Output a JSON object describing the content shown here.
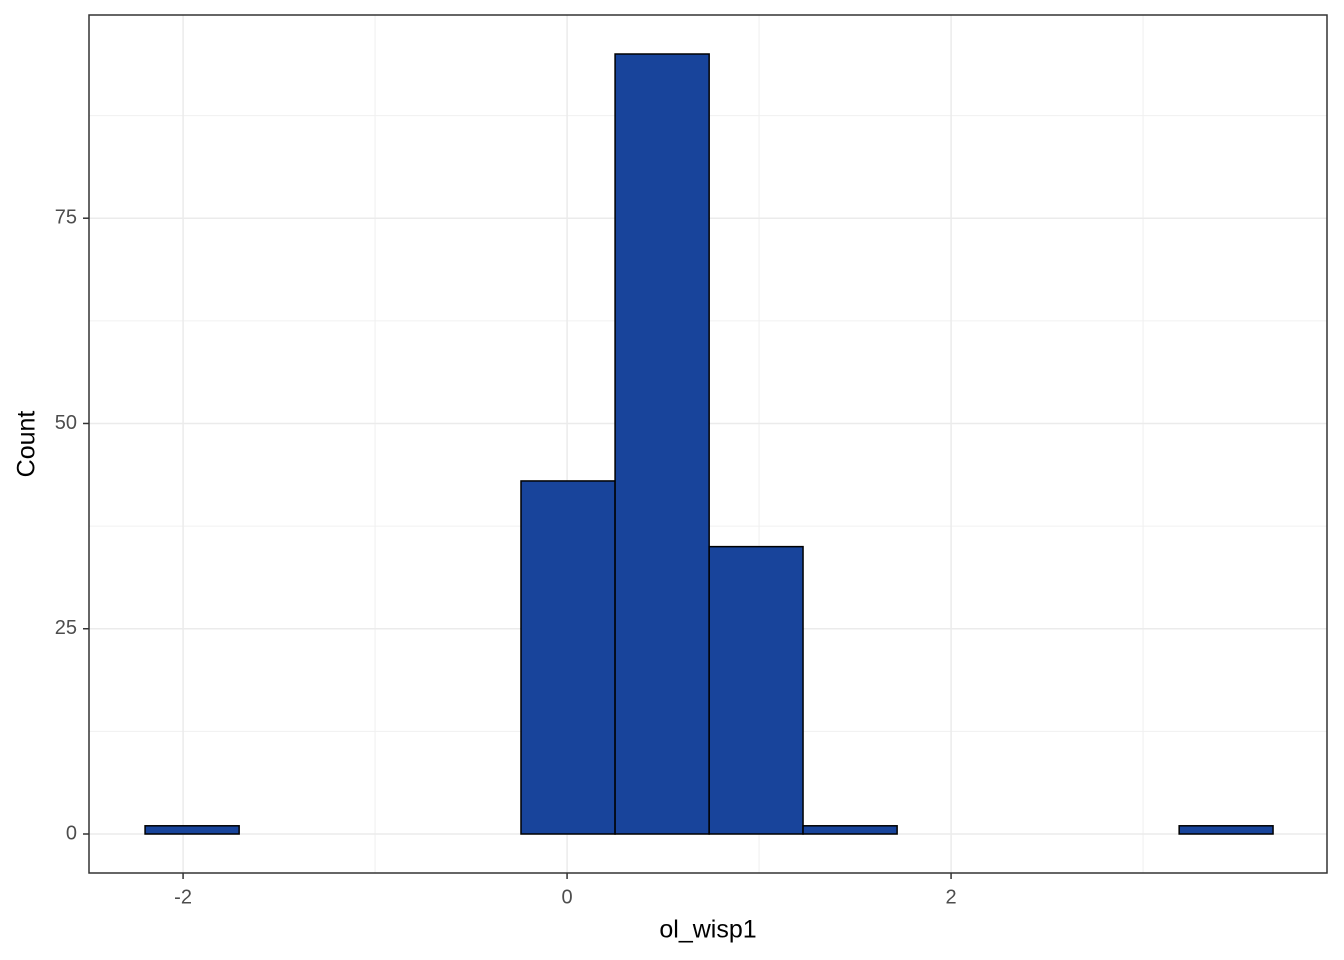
{
  "chart_data": {
    "type": "histogram",
    "x_label": "ol_wisp1",
    "y_label": "Count",
    "bins": [
      -2.198,
      -1.708,
      -1.219,
      -0.729,
      -0.24,
      0.25,
      0.74,
      1.229,
      1.719,
      2.208,
      2.698,
      3.188,
      3.677
    ],
    "values": [
      1,
      0,
      0,
      0,
      43,
      95,
      35,
      1,
      0,
      0,
      0,
      1
    ],
    "color": "#18449b",
    "edge_color": "#000000",
    "xlim": [
      -2.49,
      3.958
    ],
    "ylim": [
      -4.75,
      99.75
    ],
    "xticks": [
      -2,
      0,
      2
    ],
    "yticks": [
      0,
      25,
      50,
      75
    ],
    "minor_xticks": [
      -1,
      1,
      3
    ],
    "minor_yticks": [
      12.5,
      37.5,
      62.5,
      87.5
    ],
    "grid": true
  }
}
